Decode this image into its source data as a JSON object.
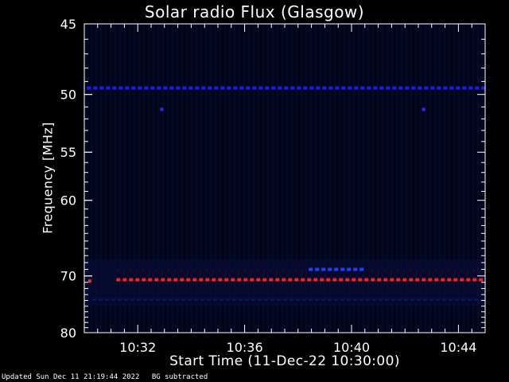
{
  "chart_data": {
    "type": "heatmap",
    "title": "Solar radio Flux (Glasgow)",
    "xlabel": "Start Time (11-Dec-22 10:30:00)",
    "ylabel": "Frequency [MHz]",
    "x_tick_labels": [
      "10:32",
      "10:36",
      "10:40",
      "10:44"
    ],
    "x_ticks_min": [
      2,
      6,
      10,
      14
    ],
    "x_range_min": [
      0,
      15
    ],
    "y_tick_labels": [
      "45",
      "50",
      "55",
      "60",
      "70",
      "80"
    ],
    "y_ticks_mhz": [
      45,
      50,
      55,
      60,
      70,
      80
    ],
    "y_range_mhz": [
      45,
      80
    ],
    "y_scale": "reciprocal",
    "grid": false,
    "features": [
      {
        "kind": "band",
        "freq_mhz": 49.5,
        "t_start_min": 0.1,
        "t_end_min": 15,
        "color": "#1a1aff"
      },
      {
        "kind": "band",
        "freq_mhz": 70.6,
        "t_start_min": 1.2,
        "t_end_min": 15,
        "color": "#ff2020"
      },
      {
        "kind": "band",
        "freq_mhz": 69.0,
        "t_start_min": 8.4,
        "t_end_min": 10.5,
        "color": "#2040ff"
      },
      {
        "kind": "band",
        "freq_mhz": 74.0,
        "t_start_min": 0.3,
        "t_end_min": 15,
        "color": "#101a66"
      },
      {
        "kind": "spot",
        "freq_mhz": 51.2,
        "t_min": 2.9,
        "color": "#2a2aff"
      },
      {
        "kind": "spot",
        "freq_mhz": 51.2,
        "t_min": 12.7,
        "color": "#2a2aff"
      },
      {
        "kind": "spot",
        "freq_mhz": 70.8,
        "t_min": 0.2,
        "color": "#ff3030"
      }
    ],
    "colors": {
      "background": "#000000",
      "plot_fill": "#03061a",
      "axes": "#ffffff"
    }
  },
  "footer": {
    "updated": "Updated Sun Dec 11 21:19:44 2022",
    "note": "BG subtracted"
  }
}
